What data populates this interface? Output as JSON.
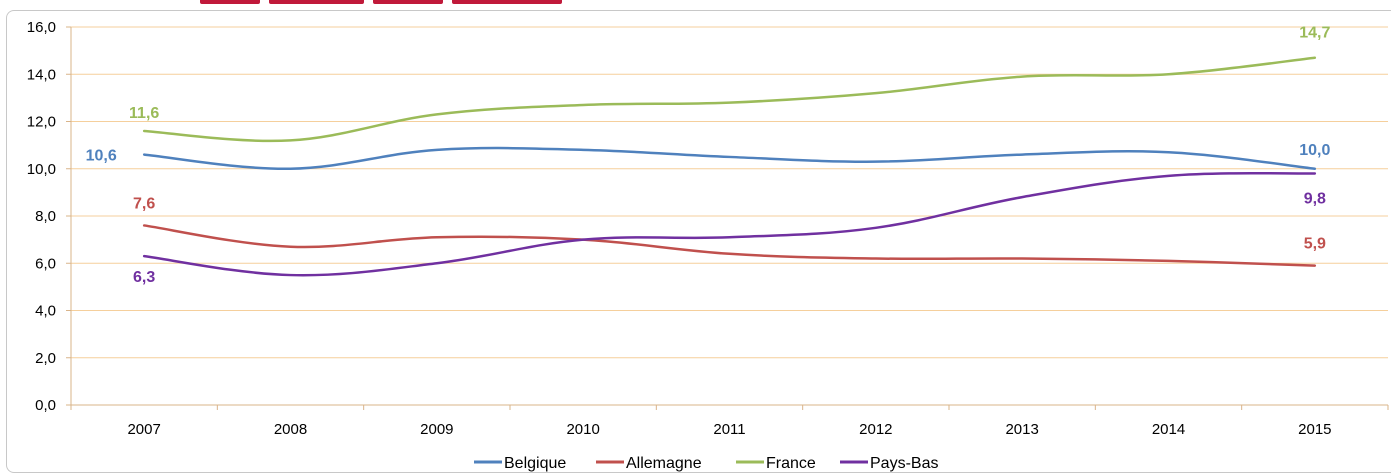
{
  "chart_data": {
    "type": "line",
    "title": "",
    "xlabel": "",
    "ylabel": "",
    "ylim": [
      0,
      16
    ],
    "ytick_step": 2,
    "ytick_labels": [
      "0,0",
      "2,0",
      "4,0",
      "6,0",
      "8,0",
      "10,0",
      "12,0",
      "14,0",
      "16,0"
    ],
    "categories": [
      "2007",
      "2008",
      "2009",
      "2010",
      "2011",
      "2012",
      "2013",
      "2014",
      "2015"
    ],
    "grid": "horizontal",
    "legend_position": "bottom",
    "series": [
      {
        "name": "Belgique",
        "color": "#4f81bd",
        "values": [
          10.6,
          10.0,
          10.8,
          10.8,
          10.5,
          10.3,
          10.6,
          10.7,
          10.0
        ],
        "labels": {
          "0": "10,6",
          "8": "10,0"
        }
      },
      {
        "name": "Allemagne",
        "color": "#c0504d",
        "values": [
          7.6,
          6.7,
          7.1,
          7.0,
          6.4,
          6.2,
          6.2,
          6.1,
          5.9
        ],
        "labels": {
          "0": "7,6",
          "8": "5,9"
        }
      },
      {
        "name": "France",
        "color": "#9bbb59",
        "values": [
          11.6,
          11.2,
          12.3,
          12.7,
          12.8,
          13.2,
          13.9,
          14.0,
          14.7
        ],
        "labels": {
          "0": "11,6",
          "8": "14,7"
        }
      },
      {
        "name": "Pays-Bas",
        "color": "#7030a0",
        "values": [
          6.3,
          5.5,
          6.0,
          7.0,
          7.1,
          7.5,
          8.8,
          9.7,
          9.8
        ],
        "labels": {
          "0": "6,3",
          "8": "9,8"
        }
      }
    ]
  }
}
